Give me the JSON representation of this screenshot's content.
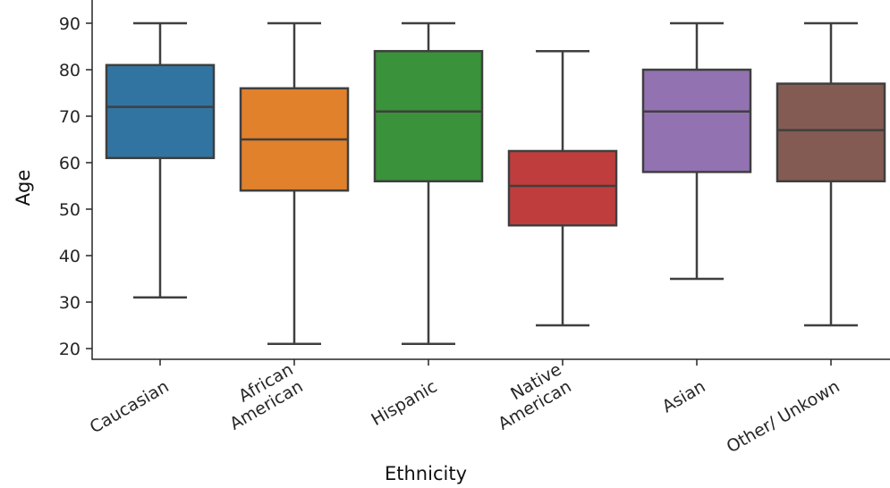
{
  "chart_data": {
    "type": "box",
    "xlabel": "Ethnicity",
    "ylabel": "Age",
    "ylim": [
      18,
      92
    ],
    "yticks": [
      20,
      30,
      40,
      50,
      60,
      70,
      80,
      90
    ],
    "grid": false,
    "categories": [
      {
        "label_lines": [
          "Caucasian"
        ],
        "min": 31,
        "q1": 61,
        "median": 72,
        "q3": 81,
        "max": 90,
        "color": "#3274a1"
      },
      {
        "label_lines": [
          "African",
          "American"
        ],
        "min": 21,
        "q1": 54,
        "median": 65,
        "q3": 76,
        "max": 90,
        "color": "#e1812c"
      },
      {
        "label_lines": [
          "Hispanic"
        ],
        "min": 21,
        "q1": 56,
        "median": 71,
        "q3": 84,
        "max": 90,
        "color": "#3a923a"
      },
      {
        "label_lines": [
          "Native",
          "American"
        ],
        "min": 25,
        "q1": 46.5,
        "median": 55,
        "q3": 62.5,
        "max": 84,
        "color": "#c03d3e"
      },
      {
        "label_lines": [
          "Asian"
        ],
        "min": 35,
        "q1": 58,
        "median": 71,
        "q3": 80,
        "max": 90,
        "color": "#9372b2"
      },
      {
        "label_lines": [
          "Other/ Unkown"
        ],
        "min": 25,
        "q1": 56,
        "median": 67,
        "q3": 77,
        "max": 90,
        "color": "#845b53"
      }
    ]
  }
}
